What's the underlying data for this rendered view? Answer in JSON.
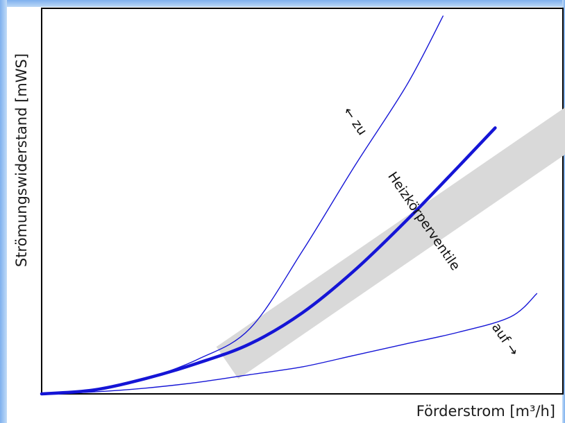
{
  "chart_data": {
    "type": "line",
    "xlabel": "Förderstrom [m³/h]",
    "ylabel": "Strömungswiderstand [mWS]",
    "xlim": [
      0,
      1
    ],
    "ylim": [
      0,
      1
    ],
    "grid": false,
    "tick_labels": false,
    "series": [
      {
        "values_x": [
          0,
          0.1,
          0.2,
          0.3,
          0.4,
          0.5,
          0.6,
          0.7,
          0.77
        ],
        "values_y": [
          0,
          0.01,
          0.04,
          0.09,
          0.17,
          0.37,
          0.59,
          0.8,
          0.98
        ],
        "emphasis": "thin"
      },
      {
        "values_x": [
          0,
          0.1,
          0.2,
          0.3,
          0.4,
          0.5,
          0.6,
          0.7,
          0.8,
          0.87
        ],
        "values_y": [
          0,
          0.01,
          0.04,
          0.08,
          0.13,
          0.21,
          0.32,
          0.45,
          0.59,
          0.69
        ],
        "emphasis": "bold"
      },
      {
        "values_x": [
          0,
          0.1,
          0.2,
          0.3,
          0.4,
          0.5,
          0.6,
          0.7,
          0.8,
          0.9,
          0.95
        ],
        "values_y": [
          0,
          0.005,
          0.015,
          0.03,
          0.05,
          0.07,
          0.1,
          0.13,
          0.16,
          0.2,
          0.26
        ],
        "emphasis": "thin"
      }
    ],
    "annotation": {
      "text_left": "← zu",
      "text_middle": "Heizkörperventile",
      "text_right": "auf →"
    },
    "colors": {
      "line": "#1515d6",
      "band": "#d9d9d9",
      "axis": "#000000",
      "border_gradient": "#7eb0ee"
    }
  }
}
